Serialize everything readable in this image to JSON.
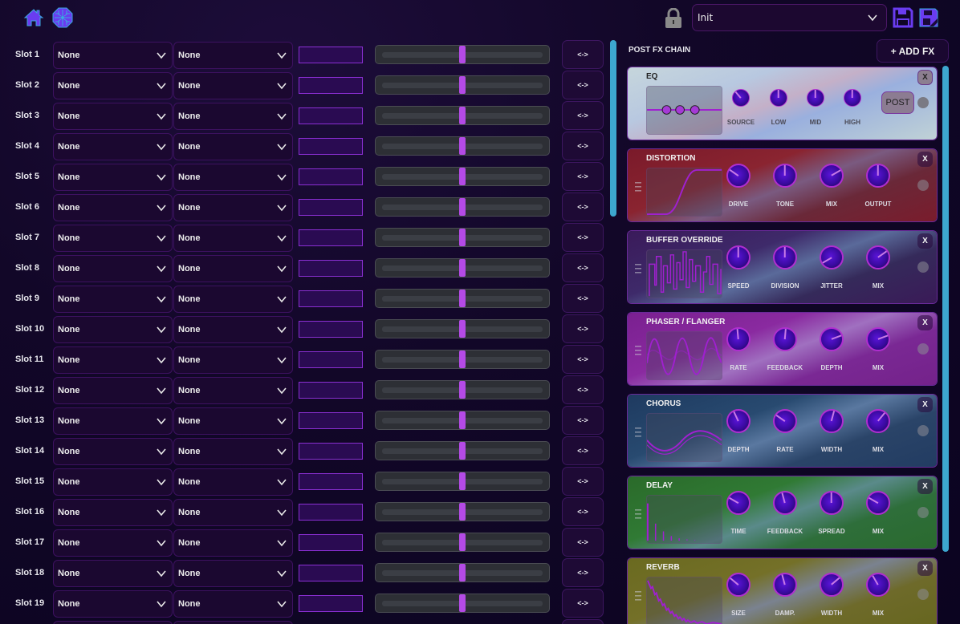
{
  "topbar": {
    "home_icon": "home-icon",
    "chip_icon": "chip-icon",
    "lock_icon": "lock-icon",
    "preset": {
      "value": "Init"
    },
    "save_icon": "save-icon",
    "save_as_icon": "save-as-icon"
  },
  "slots": [
    {
      "label": "Slot 1",
      "source": "None",
      "target": "None",
      "swap": "<->"
    },
    {
      "label": "Slot 2",
      "source": "None",
      "target": "None",
      "swap": "<->"
    },
    {
      "label": "Slot 3",
      "source": "None",
      "target": "None",
      "swap": "<->"
    },
    {
      "label": "Slot 4",
      "source": "None",
      "target": "None",
      "swap": "<->"
    },
    {
      "label": "Slot 5",
      "source": "None",
      "target": "None",
      "swap": "<->"
    },
    {
      "label": "Slot 6",
      "source": "None",
      "target": "None",
      "swap": "<->"
    },
    {
      "label": "Slot 7",
      "source": "None",
      "target": "None",
      "swap": "<->"
    },
    {
      "label": "Slot 8",
      "source": "None",
      "target": "None",
      "swap": "<->"
    },
    {
      "label": "Slot 9",
      "source": "None",
      "target": "None",
      "swap": "<->"
    },
    {
      "label": "Slot 10",
      "source": "None",
      "target": "None",
      "swap": "<->"
    },
    {
      "label": "Slot 11",
      "source": "None",
      "target": "None",
      "swap": "<->"
    },
    {
      "label": "Slot 12",
      "source": "None",
      "target": "None",
      "swap": "<->"
    },
    {
      "label": "Slot 13",
      "source": "None",
      "target": "None",
      "swap": "<->"
    },
    {
      "label": "Slot 14",
      "source": "None",
      "target": "None",
      "swap": "<->"
    },
    {
      "label": "Slot 15",
      "source": "None",
      "target": "None",
      "swap": "<->"
    },
    {
      "label": "Slot 16",
      "source": "None",
      "target": "None",
      "swap": "<->"
    },
    {
      "label": "Slot 17",
      "source": "None",
      "target": "None",
      "swap": "<->"
    },
    {
      "label": "Slot 18",
      "source": "None",
      "target": "None",
      "swap": "<->"
    },
    {
      "label": "Slot 19",
      "source": "None",
      "target": "None",
      "swap": "<->"
    }
  ],
  "fx_chain": {
    "title": "POST FX CHAIN",
    "add_button": "+ ADD FX",
    "close_label": "X",
    "modules": [
      {
        "id": "eq",
        "name": "EQ",
        "bg": "eq",
        "knobs": [
          {
            "label": "SOURCE",
            "angle": -40
          },
          {
            "label": "LOW",
            "angle": 0
          },
          {
            "label": "MID",
            "angle": 0
          },
          {
            "label": "HIGH",
            "angle": 0
          }
        ],
        "post_label": "POST"
      },
      {
        "id": "distortion",
        "name": "DISTORTION",
        "bg": "red",
        "knobs": [
          {
            "label": "DRIVE",
            "angle": -55
          },
          {
            "label": "TONE",
            "angle": 0
          },
          {
            "label": "MIX",
            "angle": 60
          },
          {
            "label": "OUTPUT",
            "angle": 0
          }
        ]
      },
      {
        "id": "buffer-override",
        "name": "BUFFER OVERRIDE",
        "bg": "violet",
        "knobs": [
          {
            "label": "SPEED",
            "angle": 0
          },
          {
            "label": "DIVISION",
            "angle": 0
          },
          {
            "label": "JITTER",
            "angle": -120
          },
          {
            "label": "MIX",
            "angle": 55
          }
        ]
      },
      {
        "id": "phaser-flanger",
        "name": "PHASER / FLANGER",
        "bg": "magenta",
        "knobs": [
          {
            "label": "RATE",
            "angle": -5
          },
          {
            "label": "FEEDBACK",
            "angle": 5
          },
          {
            "label": "DEPTH",
            "angle": 70
          },
          {
            "label": "MIX",
            "angle": 70
          }
        ]
      },
      {
        "id": "chorus",
        "name": "CHORUS",
        "bg": "blue",
        "knobs": [
          {
            "label": "DEPTH",
            "angle": -25
          },
          {
            "label": "RATE",
            "angle": -55
          },
          {
            "label": "WIDTH",
            "angle": 15
          },
          {
            "label": "MIX",
            "angle": 40
          }
        ]
      },
      {
        "id": "delay",
        "name": "DELAY",
        "bg": "green",
        "knobs": [
          {
            "label": "TIME",
            "angle": -60
          },
          {
            "label": "FEEDBACK",
            "angle": -15
          },
          {
            "label": "SPREAD",
            "angle": 0
          },
          {
            "label": "MIX",
            "angle": -60
          }
        ]
      },
      {
        "id": "reverb",
        "name": "REVERB",
        "bg": "olive",
        "knobs": [
          {
            "label": "SIZE",
            "angle": -50
          },
          {
            "label": "DAMP.",
            "angle": -15
          },
          {
            "label": "WIDTH",
            "angle": 50
          },
          {
            "label": "MIX",
            "angle": -30
          }
        ]
      }
    ]
  },
  "colors": {
    "accent": "#b44ae6",
    "scrollbar": "#3da7cf",
    "background": "#120728",
    "knob_ring": "#b02ed0",
    "icon": "#6a3cf0"
  }
}
